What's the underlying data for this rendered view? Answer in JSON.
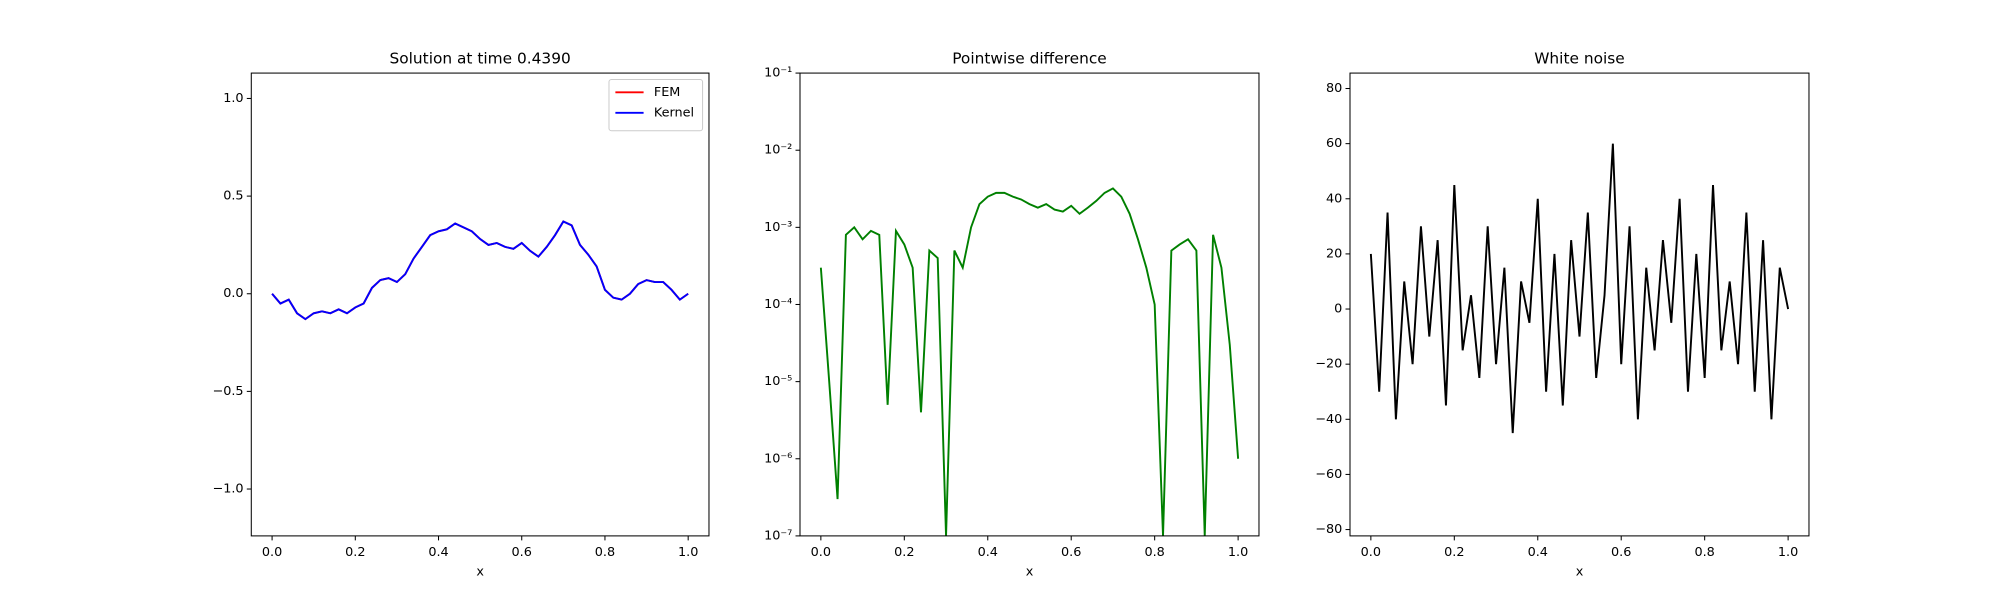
{
  "chart_data": [
    {
      "type": "line",
      "title": "Solution at time 0.4390",
      "xlabel": "x",
      "x": [
        0,
        0.02,
        0.04,
        0.06,
        0.08,
        0.1,
        0.12,
        0.14,
        0.16,
        0.18,
        0.2,
        0.22,
        0.24,
        0.26,
        0.28,
        0.3,
        0.32,
        0.34,
        0.36,
        0.38,
        0.4,
        0.42,
        0.44,
        0.46,
        0.48,
        0.5,
        0.52,
        0.54,
        0.56,
        0.58,
        0.6,
        0.62,
        0.64,
        0.66,
        0.68,
        0.7,
        0.72,
        0.74,
        0.76,
        0.78,
        0.8,
        0.82,
        0.84,
        0.86,
        0.88,
        0.9,
        0.92,
        0.94,
        0.96,
        0.98,
        1
      ],
      "series": [
        {
          "name": "FEM",
          "color": "#ff0000",
          "values": [
            0,
            -0.05,
            -0.03,
            -0.1,
            -0.13,
            -0.1,
            -0.09,
            -0.1,
            -0.08,
            -0.1,
            -0.07,
            -0.05,
            0.03,
            0.07,
            0.08,
            0.06,
            0.1,
            0.18,
            0.24,
            0.3,
            0.32,
            0.33,
            0.36,
            0.34,
            0.32,
            0.28,
            0.25,
            0.26,
            0.24,
            0.23,
            0.26,
            0.22,
            0.19,
            0.24,
            0.3,
            0.37,
            0.35,
            0.25,
            0.2,
            0.14,
            0.02,
            -0.02,
            -0.03,
            0,
            0.05,
            0.07,
            0.06,
            0.06,
            0.02,
            -0.03,
            0
          ]
        },
        {
          "name": "Kernel",
          "color": "#0000ff",
          "values": [
            0,
            -0.05,
            -0.03,
            -0.1,
            -0.13,
            -0.1,
            -0.09,
            -0.1,
            -0.08,
            -0.1,
            -0.07,
            -0.05,
            0.03,
            0.07,
            0.08,
            0.06,
            0.1,
            0.18,
            0.24,
            0.3,
            0.32,
            0.33,
            0.36,
            0.34,
            0.32,
            0.28,
            0.25,
            0.26,
            0.24,
            0.23,
            0.26,
            0.22,
            0.19,
            0.24,
            0.3,
            0.37,
            0.35,
            0.25,
            0.2,
            0.14,
            0.02,
            -0.02,
            -0.03,
            0,
            0.05,
            0.07,
            0.06,
            0.06,
            0.02,
            -0.03,
            0
          ]
        }
      ],
      "xlim": [
        -0.05,
        1.05
      ],
      "xticks": [
        {
          "value": 0,
          "label": "0.0"
        },
        0.2,
        0.4,
        0.6,
        0.8,
        {
          "value": 1,
          "label": "1.0"
        }
      ],
      "ylim": [
        -1.24,
        1.13
      ],
      "yticks": [
        {
          "value": -1,
          "label": "−1.0"
        },
        {
          "value": -0.5,
          "label": "−0.5"
        },
        {
          "value": 0,
          "label": "0.0"
        },
        0.5,
        {
          "value": 1,
          "label": "1.0"
        }
      ],
      "legend": "upper right"
    },
    {
      "type": "line",
      "title": "Pointwise difference",
      "xlabel": "x",
      "log_y": true,
      "x": [
        0,
        0.02,
        0.04,
        0.06,
        0.08,
        0.1,
        0.12,
        0.14,
        0.16,
        0.18,
        0.2,
        0.22,
        0.24,
        0.26,
        0.28,
        0.3,
        0.32,
        0.34,
        0.36,
        0.38,
        0.4,
        0.42,
        0.44,
        0.46,
        0.48,
        0.5,
        0.52,
        0.54,
        0.56,
        0.58,
        0.6,
        0.62,
        0.64,
        0.66,
        0.68,
        0.7,
        0.72,
        0.74,
        0.76,
        0.78,
        0.8,
        0.82,
        0.84,
        0.86,
        0.88,
        0.9,
        0.92,
        0.94,
        0.96,
        0.98,
        1
      ],
      "series": [
        {
          "color": "#008000",
          "values": [
            0.0003,
            1e-05,
            3e-07,
            0.0008,
            0.001,
            0.0007,
            0.0009,
            0.0008,
            5e-06,
            0.0009,
            0.0006,
            0.0003,
            4e-06,
            0.0005,
            0.0004,
            1e-07,
            0.0005,
            0.0003,
            0.001,
            0.002,
            0.0025,
            0.0028,
            0.0028,
            0.0025,
            0.0023,
            0.002,
            0.0018,
            0.002,
            0.0017,
            0.0016,
            0.0019,
            0.0015,
            0.0018,
            0.0022,
            0.0028,
            0.0032,
            0.0025,
            0.0015,
            0.0007,
            0.0003,
            0.0001,
            1e-07,
            0.0005,
            0.0006,
            0.0007,
            0.0005,
            1e-07,
            0.0008,
            0.0003,
            3e-05,
            1e-06
          ]
        }
      ],
      "xlim": [
        -0.05,
        1.05
      ],
      "xticks": [
        {
          "value": 0,
          "label": "0.0"
        },
        0.2,
        0.4,
        0.6,
        0.8,
        {
          "value": 1,
          "label": "1.0"
        }
      ],
      "ylim": [
        1e-07,
        0.1
      ],
      "yticks": [
        {
          "value": 1e-07,
          "label": "10⁻⁷"
        },
        {
          "value": 1e-06,
          "label": "10⁻⁶"
        },
        {
          "value": 1e-05,
          "label": "10⁻⁵"
        },
        {
          "value": 0.0001,
          "label": "10⁻⁴"
        },
        {
          "value": 0.001,
          "label": "10⁻³"
        },
        {
          "value": 0.01,
          "label": "10⁻²"
        },
        {
          "value": 0.1,
          "label": "10⁻¹"
        }
      ]
    },
    {
      "type": "line",
      "title": "White noise",
      "xlabel": "x",
      "x": [
        0,
        0.02,
        0.04,
        0.06,
        0.08,
        0.1,
        0.12,
        0.14,
        0.16,
        0.18,
        0.2,
        0.22,
        0.24,
        0.26,
        0.28,
        0.3,
        0.32,
        0.34,
        0.36,
        0.38,
        0.4,
        0.42,
        0.44,
        0.46,
        0.48,
        0.5,
        0.52,
        0.54,
        0.56,
        0.58,
        0.6,
        0.62,
        0.64,
        0.66,
        0.68,
        0.7,
        0.72,
        0.74,
        0.76,
        0.78,
        0.8,
        0.82,
        0.84,
        0.86,
        0.88,
        0.9,
        0.92,
        0.94,
        0.96,
        0.98,
        1
      ],
      "series": [
        {
          "color": "#000000",
          "values": [
            20,
            -30,
            35,
            -40,
            10,
            -20,
            30,
            -10,
            25,
            -35,
            45,
            -15,
            5,
            -25,
            30,
            -20,
            15,
            -45,
            10,
            -5,
            40,
            -30,
            20,
            -35,
            25,
            -10,
            35,
            -25,
            5,
            60,
            -20,
            30,
            -40,
            15,
            -15,
            25,
            -5,
            40,
            -30,
            20,
            -25,
            45,
            -15,
            10,
            -20,
            35,
            -30,
            25,
            -40,
            15,
            0
          ]
        }
      ],
      "xlim": [
        -0.05,
        1.05
      ],
      "xticks": [
        {
          "value": 0,
          "label": "0.0"
        },
        0.2,
        0.4,
        0.6,
        0.8,
        {
          "value": 1,
          "label": "1.0"
        }
      ],
      "ylim": [
        -82.3,
        85.6
      ],
      "yticks": [
        {
          "value": -80,
          "label": "−80"
        },
        {
          "value": -60,
          "label": "−60"
        },
        {
          "value": -40,
          "label": "−40"
        },
        {
          "value": -20,
          "label": "−20"
        },
        0,
        20,
        40,
        60,
        80
      ]
    }
  ]
}
